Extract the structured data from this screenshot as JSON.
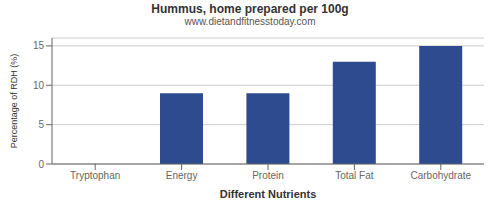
{
  "chart_data": {
    "type": "bar",
    "title": "Hummus, home prepared per 100g",
    "subtitle": "www.dietandfitnesstoday.com",
    "xlabel": "Different Nutrients",
    "ylabel": "Percentage of RDH (%)",
    "categories": [
      "Tryptophan",
      "Energy",
      "Protein",
      "Total Fat",
      "Carbohydrate"
    ],
    "values": [
      0,
      9,
      9,
      13,
      15
    ],
    "color": "#2e4b8f",
    "ylim": [
      0,
      16
    ],
    "yticks": [
      0,
      5,
      10,
      15
    ],
    "grid": true
  }
}
